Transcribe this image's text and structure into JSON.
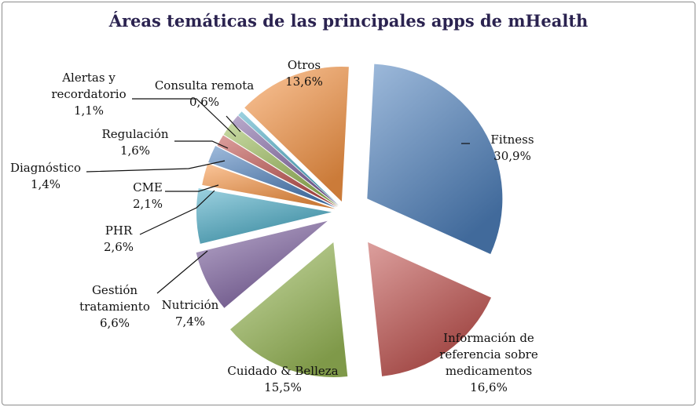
{
  "chart_data": {
    "type": "pie",
    "title": "Áreas temáticas de las principales apps de mHealth",
    "series": [
      {
        "name": "Fitness",
        "value": 30.9,
        "value_label": "30,9%",
        "color": "#4f81bd"
      },
      {
        "name": "Información de referencia sobre medicamentos",
        "value": 16.6,
        "value_label": "16,6%",
        "color": "#c0504d"
      },
      {
        "name": "Cuidado & Belleza",
        "value": 15.5,
        "value_label": "15,5%",
        "color": "#9bbb59"
      },
      {
        "name": "Nutrición",
        "value": 7.4,
        "value_label": "7,4%",
        "color": "#8064a2"
      },
      {
        "name": "Gestión tratamiento",
        "value": 6.6,
        "value_label": "6,6%",
        "color": "#4bacc6"
      },
      {
        "name": "PHR",
        "value": 2.6,
        "value_label": "2,6%",
        "color": "#f79646"
      },
      {
        "name": "CME",
        "value": 2.1,
        "value_label": "2,1%",
        "color": "#4f81bd"
      },
      {
        "name": "Diagnóstico",
        "value": 1.4,
        "value_label": "1,4%",
        "color": "#c0504d"
      },
      {
        "name": "Regulación",
        "value": 1.6,
        "value_label": "1,6%",
        "color": "#9bbb59"
      },
      {
        "name": "Alertas y recordatorio",
        "value": 1.1,
        "value_label": "1,1%",
        "color": "#8064a2"
      },
      {
        "name": "Consulta remota",
        "value": 0.6,
        "value_label": "0,6%",
        "color": "#4bacc6"
      },
      {
        "name": "Otros",
        "value": 13.6,
        "value_label": "13,6%",
        "color": "#f79646"
      }
    ],
    "labels": [
      {
        "lines": [
          "Fitness",
          "30,9%"
        ]
      },
      {
        "lines": [
          "Información de",
          "referencia sobre",
          "medicamentos",
          "16,6%"
        ]
      },
      {
        "lines": [
          "Cuidado & Belleza",
          "15,5%"
        ]
      },
      {
        "lines": [
          "Nutrición",
          "7,4%"
        ]
      },
      {
        "lines": [
          "Gestión",
          "tratamiento",
          "6,6%"
        ]
      },
      {
        "lines": [
          "PHR",
          "2,6%"
        ]
      },
      {
        "lines": [
          "CME",
          "2,1%"
        ]
      },
      {
        "lines": [
          "Diagnóstico",
          "1,4%"
        ]
      },
      {
        "lines": [
          "Regulación",
          "1,6%"
        ]
      },
      {
        "lines": [
          "Alertas y",
          "recordatorio",
          "1,1%"
        ]
      },
      {
        "lines": [
          "Consulta remota",
          "0,6%"
        ]
      },
      {
        "lines": [
          "Otros",
          "13,6%"
        ]
      }
    ],
    "legend": "none"
  }
}
